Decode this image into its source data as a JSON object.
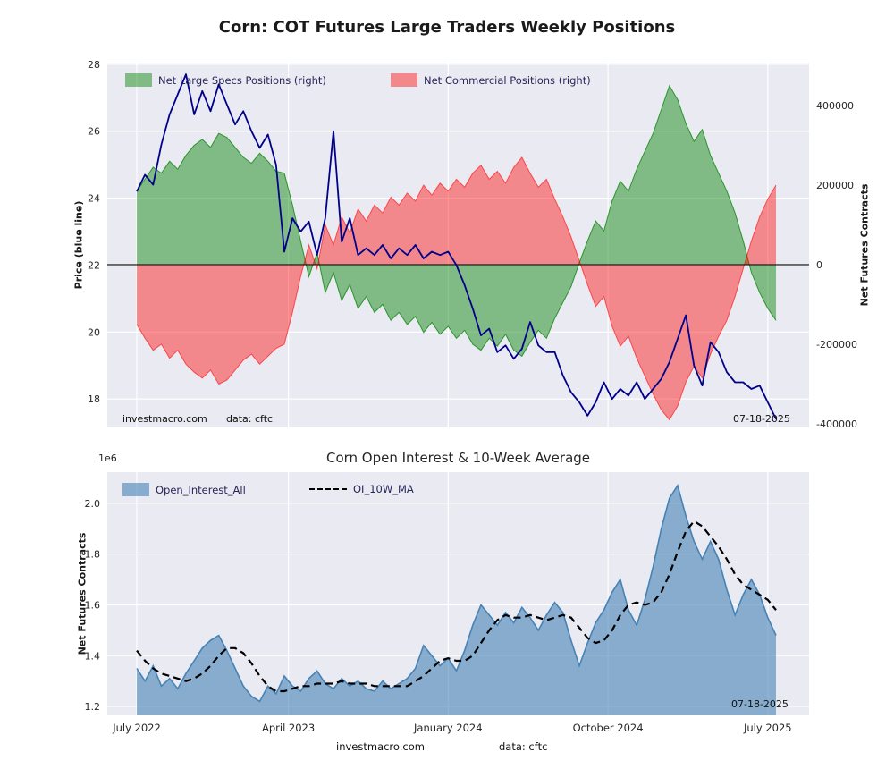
{
  "colors": {
    "plot_bg": "#eaeaf2",
    "grid": "#ffffff",
    "specs_green": "#008000",
    "specs_fill": "rgba(0,128,0,0.45)",
    "commercial_red": "#ff0000",
    "commercial_fill": "rgba(255,0,0,0.42)",
    "price_blue": "#00008b",
    "oi_blue": "#4682b4",
    "oi_fill": "rgba(70,130,180,0.6)",
    "ma_black": "#000000",
    "zero_line": "#1a1a1a",
    "legend_text": "#26265a"
  },
  "footer": {
    "source": "investmacro.com",
    "data": "data: cftc"
  },
  "chart_data": [
    {
      "type": "area+line",
      "title": "Corn: COT Futures Large Traders Weekly Positions",
      "ylabel_left": "Price (blue line)",
      "ylabel_right": "Net Futures Contracts",
      "ylim_left": [
        17.15,
        28.05
      ],
      "yticks_left": [
        28,
        26,
        24,
        22,
        20,
        18
      ],
      "ylim_right": [
        -409000,
        508000
      ],
      "yticks_right": [
        400000,
        200000,
        0,
        -200000,
        -400000
      ],
      "annotations": {
        "source": "investmacro.com",
        "data": "data: cftc",
        "date": "07-18-2025"
      },
      "x_weeks": [
        0,
        2,
        4,
        6,
        8,
        10,
        12,
        14,
        16,
        18,
        20,
        22,
        24,
        26,
        28,
        30,
        32,
        34,
        36,
        38,
        40,
        42,
        44,
        46,
        48,
        50,
        52,
        54,
        56,
        58,
        60,
        62,
        64,
        66,
        68,
        70,
        72,
        74,
        76,
        78,
        80,
        82,
        84,
        86,
        88,
        90,
        92,
        94,
        96,
        98,
        100,
        102,
        104,
        106,
        108,
        110,
        112,
        114,
        116,
        118,
        120,
        122,
        124,
        126,
        128,
        130,
        132,
        134,
        136,
        138,
        140,
        142,
        144,
        146,
        148,
        150,
        152,
        154,
        156
      ],
      "x_range_note": "weekly data, July 2022 (week 0) to July 2025 (week 156)",
      "series": [
        {
          "name": "Net Large Specs Positions (right)",
          "axis": "right",
          "style": "area",
          "color_key": "specs_green",
          "values": [
            185000,
            215000,
            245000,
            230000,
            260000,
            240000,
            275000,
            300000,
            315000,
            295000,
            330000,
            320000,
            295000,
            270000,
            255000,
            280000,
            260000,
            235000,
            230000,
            150000,
            60000,
            -30000,
            30000,
            -70000,
            -20000,
            -90000,
            -50000,
            -110000,
            -80000,
            -120000,
            -100000,
            -140000,
            -120000,
            -150000,
            -130000,
            -170000,
            -145000,
            -175000,
            -155000,
            -185000,
            -165000,
            -200000,
            -215000,
            -185000,
            -205000,
            -175000,
            -215000,
            -230000,
            -195000,
            -165000,
            -185000,
            -135000,
            -95000,
            -55000,
            5000,
            60000,
            110000,
            85000,
            160000,
            210000,
            185000,
            240000,
            285000,
            330000,
            390000,
            450000,
            415000,
            355000,
            310000,
            340000,
            275000,
            230000,
            185000,
            130000,
            60000,
            -20000,
            -70000,
            -110000,
            -140000
          ]
        },
        {
          "name": "Net Commercial Positions (right)",
          "axis": "right",
          "style": "area",
          "color_key": "commercial_red",
          "values": [
            -150000,
            -185000,
            -215000,
            -200000,
            -235000,
            -215000,
            -250000,
            -270000,
            -285000,
            -265000,
            -300000,
            -290000,
            -265000,
            -240000,
            -225000,
            -250000,
            -230000,
            -210000,
            -200000,
            -120000,
            -30000,
            50000,
            -10000,
            100000,
            50000,
            120000,
            80000,
            140000,
            110000,
            150000,
            130000,
            170000,
            150000,
            180000,
            160000,
            200000,
            175000,
            205000,
            185000,
            215000,
            195000,
            230000,
            250000,
            215000,
            235000,
            205000,
            245000,
            270000,
            230000,
            195000,
            215000,
            165000,
            120000,
            70000,
            10000,
            -50000,
            -105000,
            -80000,
            -155000,
            -205000,
            -180000,
            -235000,
            -280000,
            -325000,
            -365000,
            -390000,
            -355000,
            -295000,
            -255000,
            -285000,
            -225000,
            -180000,
            -140000,
            -80000,
            -10000,
            60000,
            120000,
            165000,
            200000
          ]
        },
        {
          "name": "Price",
          "axis": "left",
          "style": "line",
          "color_key": "price_blue",
          "values": [
            24.2,
            24.7,
            24.4,
            25.6,
            26.5,
            27.1,
            27.7,
            26.5,
            27.2,
            26.6,
            27.4,
            26.8,
            26.2,
            26.6,
            26.0,
            25.5,
            25.9,
            25.0,
            22.4,
            23.4,
            23.0,
            23.3,
            22.3,
            23.4,
            26.0,
            22.7,
            23.4,
            22.3,
            22.5,
            22.3,
            22.6,
            22.2,
            22.5,
            22.3,
            22.6,
            22.2,
            22.4,
            22.3,
            22.4,
            22.0,
            21.4,
            20.7,
            19.9,
            20.1,
            19.4,
            19.6,
            19.2,
            19.5,
            20.3,
            19.6,
            19.4,
            19.4,
            18.7,
            18.2,
            17.9,
            17.5,
            17.9,
            18.5,
            18.0,
            18.3,
            18.1,
            18.5,
            18.0,
            18.3,
            18.6,
            19.1,
            19.8,
            20.5,
            19.0,
            18.4,
            19.7,
            19.4,
            18.8,
            18.5,
            18.5,
            18.3,
            18.4,
            17.9,
            17.4
          ]
        }
      ]
    },
    {
      "type": "area+line",
      "title": "Corn Open Interest & 10-Week Average",
      "ylabel": "Net Futures Contracts",
      "offset_label": "1e6",
      "ylim": [
        1.165,
        2.123
      ],
      "yticks": [
        1.2,
        1.4,
        1.6,
        1.8,
        2.0
      ],
      "values_unit": "millions of contracts (x 1e6)",
      "annotations": {
        "date": "07-18-2025"
      },
      "xticks": [
        {
          "label": "July 2022",
          "week": 0
        },
        {
          "label": "April 2023",
          "week": 37
        },
        {
          "label": "January 2024",
          "week": 76
        },
        {
          "label": "October 2024",
          "week": 115
        },
        {
          "label": "July 2025",
          "week": 154
        }
      ],
      "series": [
        {
          "name": "Open_Interest_All",
          "style": "area",
          "color_key": "oi_blue",
          "values": [
            1.35,
            1.3,
            1.36,
            1.28,
            1.31,
            1.27,
            1.33,
            1.38,
            1.43,
            1.46,
            1.48,
            1.42,
            1.35,
            1.28,
            1.24,
            1.22,
            1.28,
            1.25,
            1.32,
            1.28,
            1.26,
            1.31,
            1.34,
            1.29,
            1.27,
            1.31,
            1.28,
            1.3,
            1.27,
            1.26,
            1.3,
            1.27,
            1.29,
            1.31,
            1.35,
            1.44,
            1.4,
            1.36,
            1.39,
            1.34,
            1.42,
            1.52,
            1.6,
            1.56,
            1.52,
            1.57,
            1.53,
            1.59,
            1.55,
            1.5,
            1.56,
            1.61,
            1.57,
            1.46,
            1.36,
            1.45,
            1.53,
            1.58,
            1.65,
            1.7,
            1.58,
            1.52,
            1.62,
            1.75,
            1.9,
            2.02,
            2.07,
            1.95,
            1.85,
            1.78,
            1.85,
            1.78,
            1.66,
            1.56,
            1.64,
            1.7,
            1.64,
            1.55,
            1.48
          ]
        },
        {
          "name": "OI_10W_MA",
          "style": "dashed_line",
          "color_key": "ma_black",
          "values": [
            1.42,
            1.38,
            1.35,
            1.33,
            1.32,
            1.31,
            1.3,
            1.31,
            1.33,
            1.36,
            1.4,
            1.43,
            1.43,
            1.41,
            1.37,
            1.32,
            1.28,
            1.26,
            1.26,
            1.27,
            1.28,
            1.28,
            1.29,
            1.29,
            1.29,
            1.3,
            1.29,
            1.29,
            1.29,
            1.28,
            1.28,
            1.28,
            1.28,
            1.28,
            1.3,
            1.32,
            1.35,
            1.38,
            1.39,
            1.38,
            1.38,
            1.4,
            1.45,
            1.5,
            1.54,
            1.56,
            1.55,
            1.55,
            1.56,
            1.55,
            1.54,
            1.55,
            1.56,
            1.55,
            1.51,
            1.47,
            1.45,
            1.46,
            1.5,
            1.56,
            1.6,
            1.61,
            1.6,
            1.61,
            1.65,
            1.72,
            1.81,
            1.89,
            1.93,
            1.91,
            1.87,
            1.83,
            1.78,
            1.72,
            1.68,
            1.66,
            1.64,
            1.62,
            1.58
          ]
        }
      ]
    }
  ]
}
